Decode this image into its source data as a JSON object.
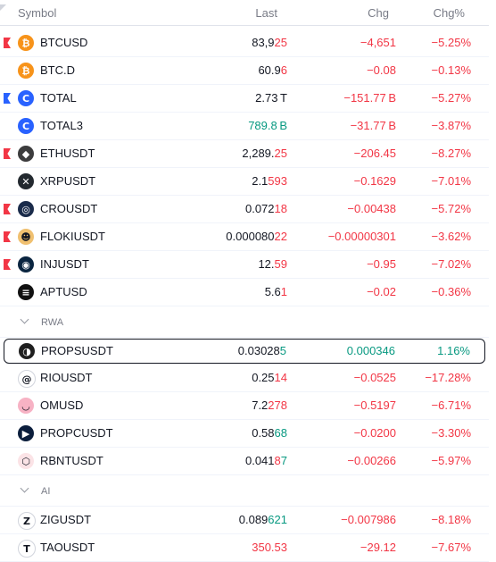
{
  "header": {
    "symbol": "Symbol",
    "last": "Last",
    "chg": "Chg",
    "chgp": "Chg%"
  },
  "colors": {
    "red": "#f23645",
    "green": "#089981",
    "blue": "#2962ff",
    "text": "#131722",
    "muted": "#787b86"
  },
  "rows_top": [
    {
      "symbol": "BTCUSD",
      "last_main": "83,9",
      "last_tail": "25",
      "last_tail_color": "red",
      "chg": "−4,651",
      "chgp": "−5.25%",
      "flag": "red",
      "icon": "bitcoin-icon",
      "icon_bg": "#f7931a",
      "icon_glyph": "₿"
    },
    {
      "symbol": "BTC.D",
      "last_main": "60.9",
      "last_tail": "6",
      "last_tail_color": "red",
      "chg": "−0.08",
      "chgp": "−0.13%",
      "flag": "",
      "icon": "bitcoin-icon",
      "icon_bg": "#f7931a",
      "icon_glyph": "₿"
    },
    {
      "symbol": "TOTAL",
      "last_main": "2.73",
      "last_tail": " T",
      "last_tail_color": "black",
      "chg": "−151.77 B",
      "chgp": "−5.27%",
      "flag": "blue",
      "icon": "total-market-icon",
      "icon_bg": "#2962ff",
      "icon_glyph": "C"
    },
    {
      "symbol": "TOTAL3",
      "last_main": "789.8 B",
      "last_tail": "",
      "last_tail_color": "green",
      "last_all_color": "green",
      "chg": "−31.77 B",
      "chgp": "−3.87%",
      "flag": "",
      "icon": "total-market-icon",
      "icon_bg": "#2962ff",
      "icon_glyph": "C"
    },
    {
      "symbol": "ETHUSDT",
      "last_main": "2,289.",
      "last_tail": "25",
      "last_tail_color": "red",
      "chg": "−206.45",
      "chgp": "−8.27%",
      "flag": "red",
      "icon": "ethereum-icon",
      "icon_bg": "#3c3c3d",
      "icon_glyph": "◆"
    },
    {
      "symbol": "XRPUSDT",
      "last_main": "2.1",
      "last_tail": "593",
      "last_tail_color": "red",
      "chg": "−0.1629",
      "chgp": "−7.01%",
      "flag": "",
      "icon": "xrp-icon",
      "icon_bg": "#23292f",
      "icon_glyph": "✕"
    },
    {
      "symbol": "CROUSDT",
      "last_main": "0.072",
      "last_tail": "18",
      "last_tail_color": "red",
      "chg": "−0.00438",
      "chgp": "−5.72%",
      "flag": "red",
      "icon": "cronos-icon",
      "icon_bg": "#1a2b4a",
      "icon_glyph": "◎"
    },
    {
      "symbol": "FLOKIUSDT",
      "last_main": "0.000080",
      "last_tail": "22",
      "last_tail_color": "red",
      "chg": "−0.00000301",
      "chgp": "−3.62%",
      "flag": "red",
      "icon": "floki-icon",
      "icon_bg": "#f0c070",
      "icon_glyph": "☻"
    },
    {
      "symbol": "INJUSDT",
      "last_main": "12.",
      "last_tail": "59",
      "last_tail_color": "red",
      "chg": "−0.95",
      "chgp": "−7.02%",
      "flag": "red",
      "icon": "injective-icon",
      "icon_bg": "#0a2540",
      "icon_glyph": "◉"
    },
    {
      "symbol": "APTUSD",
      "last_main": "5.6",
      "last_tail": "1",
      "last_tail_color": "red",
      "chg": "−0.02",
      "chgp": "−0.36%",
      "flag": "",
      "icon": "aptos-icon",
      "icon_bg": "#111111",
      "icon_glyph": "≡"
    }
  ],
  "section_rwa": "RWA",
  "rows_rwa": [
    {
      "symbol": "PROPSUSDT",
      "last_main": "0.03028",
      "last_tail": "5",
      "last_tail_color": "green",
      "chg": "0.000346",
      "chg_color": "green",
      "chgp": "1.16%",
      "chgp_color": "green",
      "flag": "",
      "icon": "props-icon",
      "icon_bg": "#1f1f1f",
      "icon_glyph": "◑",
      "selected": true
    },
    {
      "symbol": "RIOUSDT",
      "last_main": "0.25",
      "last_tail": "14",
      "last_tail_color": "red",
      "chg": "−0.0525",
      "chgp": "−17.28%",
      "flag": "",
      "icon": "rio-icon",
      "icon_bg": "#ffffff",
      "icon_glyph": "@"
    },
    {
      "symbol": "OMUSD",
      "last_main": "7.2",
      "last_tail": "278",
      "last_tail_color": "red",
      "chg": "−0.5197",
      "chgp": "−6.71%",
      "flag": "",
      "icon": "mantra-icon",
      "icon_bg": "#f7b2c4",
      "icon_glyph": "◡"
    },
    {
      "symbol": "PROPCUSDT",
      "last_main": "0.58",
      "last_tail": "68",
      "last_tail_color": "green",
      "chg": "−0.0200",
      "chgp": "−3.30%",
      "flag": "",
      "icon": "propc-icon",
      "icon_bg": "#0b1e3c",
      "icon_glyph": "▶"
    },
    {
      "symbol": "RBNTUSDT",
      "last_main": "0.041",
      "last_tail": "87",
      "last_tail_color": "mixed",
      "chg": "−0.00266",
      "chgp": "−5.97%",
      "flag": "",
      "icon": "rbnt-icon",
      "icon_bg": "#fbe3e6",
      "icon_glyph": "⬡"
    }
  ],
  "section_ai": "AI",
  "rows_ai": [
    {
      "symbol": "ZIGUSDT",
      "last_main": "0.089",
      "last_tail": "621",
      "last_tail_color": "green",
      "chg": "−0.007986",
      "chgp": "−8.18%",
      "flag": "",
      "icon": "zig-icon",
      "icon_bg": "#ffffff",
      "icon_glyph": "Z"
    },
    {
      "symbol": "TAOUSDT",
      "last_main": "",
      "last_tail": "350.53",
      "last_tail_color": "red",
      "chg": "−29.12",
      "chgp": "−7.67%",
      "flag": "",
      "icon": "bittensor-icon",
      "icon_bg": "#ffffff",
      "icon_glyph": "T"
    }
  ]
}
